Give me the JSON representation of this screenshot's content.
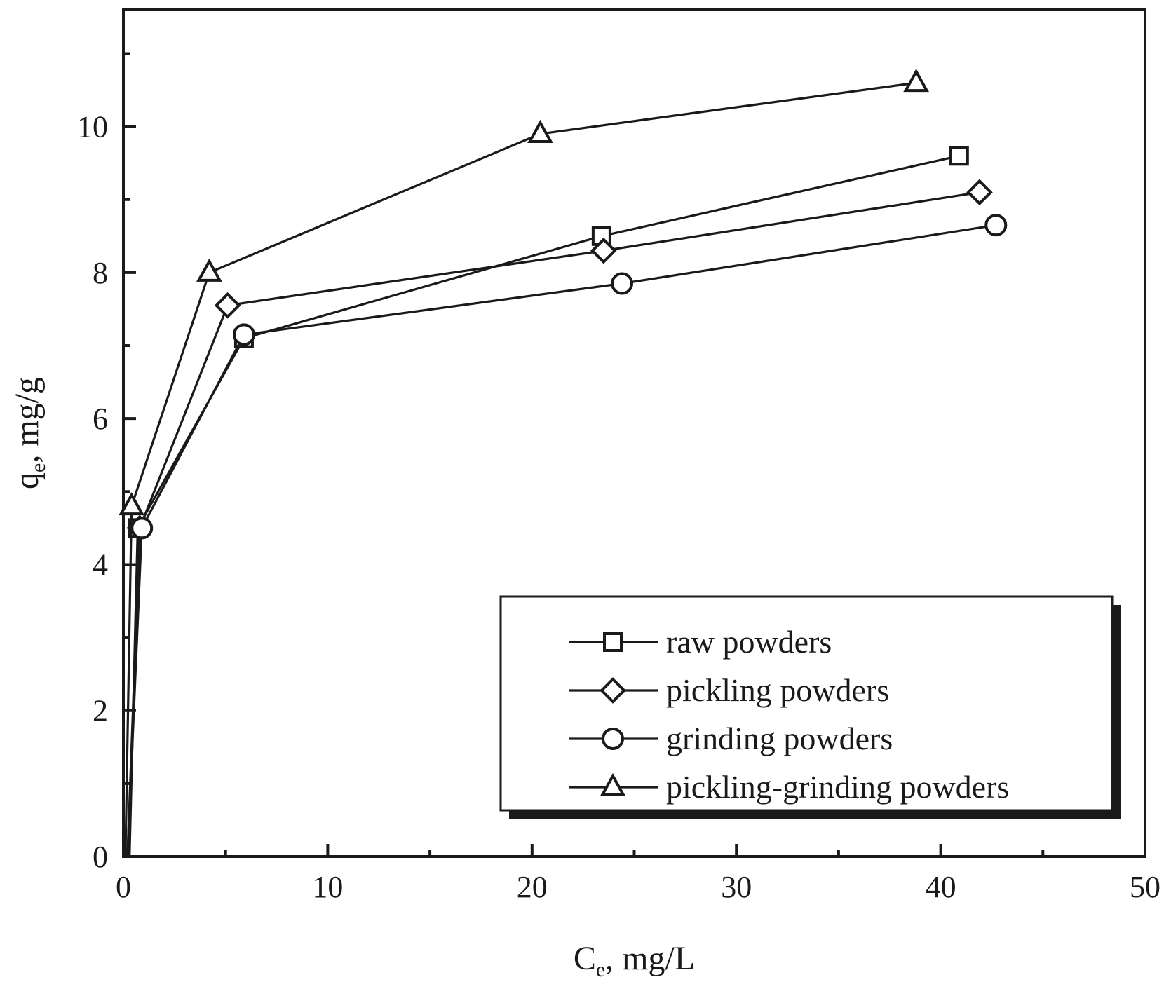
{
  "chart_data": {
    "type": "line",
    "title": "",
    "xlabel": {
      "main": "C",
      "sub": "e",
      "rest": ", mg/L"
    },
    "ylabel": {
      "main": "q",
      "sub": "e",
      "rest": ", mg/g"
    },
    "xlim": [
      0,
      50
    ],
    "ylim": [
      0,
      11.6
    ],
    "x_ticks": [
      0,
      10,
      20,
      30,
      40,
      50
    ],
    "x_tick_labels": [
      "0",
      "10",
      "20",
      "30",
      "40",
      "50"
    ],
    "x_minor_ticks": [
      5,
      15,
      25,
      35,
      45
    ],
    "y_ticks": [
      0,
      2,
      4,
      6,
      8,
      10
    ],
    "y_tick_labels": [
      "0",
      "2",
      "4",
      "6",
      "8",
      "10"
    ],
    "y_minor_ticks": [
      1,
      3,
      5,
      7,
      9,
      11
    ],
    "grid": false,
    "legend_position": "bottom-right",
    "series": [
      {
        "name": "raw powders",
        "marker": "square",
        "x": [
          0.3,
          0.7,
          5.9,
          23.4,
          40.9
        ],
        "y": [
          0.0,
          4.5,
          7.1,
          8.5,
          9.6
        ]
      },
      {
        "name": "pickling powders",
        "marker": "diamond",
        "x": [
          0.2,
          0.8,
          5.1,
          23.5,
          41.9
        ],
        "y": [
          0.0,
          4.5,
          7.55,
          8.3,
          9.1
        ]
      },
      {
        "name": "grinding powders",
        "marker": "circle",
        "x": [
          0.2,
          0.9,
          5.9,
          24.4,
          42.7
        ],
        "y": [
          0.0,
          4.5,
          7.15,
          7.85,
          8.65
        ]
      },
      {
        "name": "pickling-grinding powders",
        "marker": "triangle",
        "x": [
          0.1,
          0.4,
          4.2,
          20.4,
          38.8
        ],
        "y": [
          0.0,
          4.8,
          8.0,
          9.9,
          10.6
        ]
      }
    ]
  }
}
